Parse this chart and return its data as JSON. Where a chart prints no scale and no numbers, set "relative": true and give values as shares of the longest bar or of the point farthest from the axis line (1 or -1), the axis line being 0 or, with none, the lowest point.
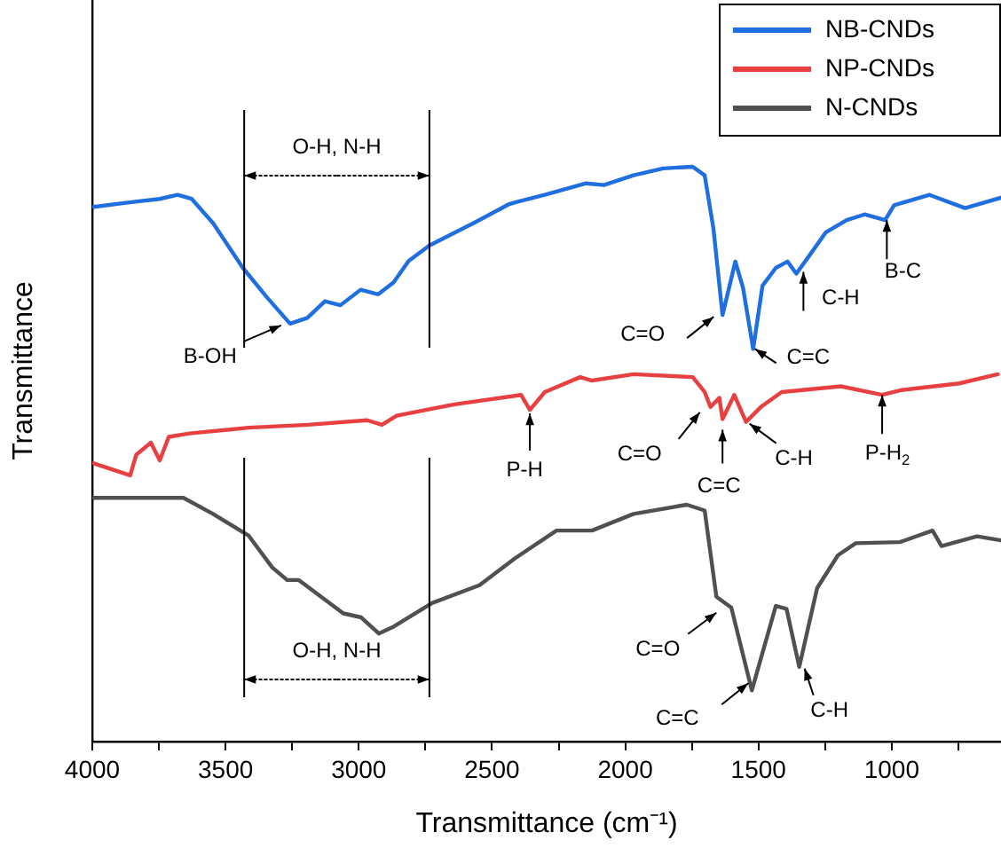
{
  "chart_data": {
    "type": "line",
    "relative": true,
    "xlabel": "Transmittance (cm⁻¹)",
    "ylabel": "Transmittance",
    "xlim": [
      4000,
      590
    ],
    "xticks": [
      4000,
      {
        "value": 3750,
        "label": null
      },
      3500,
      {
        "value": 3250,
        "label": null
      },
      3000,
      {
        "value": 2750,
        "label": null
      },
      2500,
      {
        "value": 2250,
        "label": null
      },
      2000,
      {
        "value": 1750,
        "label": null
      },
      1500,
      {
        "value": 1250,
        "label": null
      },
      1000,
      {
        "value": 750,
        "label": null
      }
    ],
    "legend": "top right",
    "grid": false,
    "marker": "none",
    "line_style": "solid",
    "series": [
      {
        "name": "NB-CNDs",
        "color": "#1f6fe0",
        "x": [
          3995,
          3860,
          3747,
          3680,
          3627,
          3547,
          3435,
          3347,
          3258,
          3193,
          3127,
          3069,
          2993,
          2927,
          2869,
          2813,
          2735,
          2569,
          2435,
          2413,
          2302,
          2147,
          2080,
          1969,
          1858,
          1747,
          1702,
          1669,
          1635,
          1587,
          1558,
          1520,
          1485,
          1435,
          1391,
          1358,
          1302,
          1247,
          1169,
          1102,
          1025,
          991,
          858,
          725,
          591
        ],
        "values": [
          0.93,
          0.938,
          0.944,
          0.951,
          0.944,
          0.902,
          0.824,
          0.774,
          0.727,
          0.737,
          0.766,
          0.759,
          0.786,
          0.778,
          0.799,
          0.836,
          0.863,
          0.902,
          0.935,
          0.938,
          0.951,
          0.971,
          0.968,
          0.985,
          0.997,
          1.0,
          0.985,
          0.892,
          0.742,
          0.835,
          0.789,
          0.683,
          0.793,
          0.824,
          0.835,
          0.814,
          0.85,
          0.886,
          0.907,
          0.917,
          0.907,
          0.933,
          0.951,
          0.928,
          0.946
        ]
      },
      {
        "name": "NP-CNDs",
        "color": "#e84040",
        "x": [
          3995,
          3858,
          3835,
          3780,
          3747,
          3713,
          3635,
          3413,
          3191,
          2969,
          2913,
          2858,
          2635,
          2391,
          2358,
          2302,
          2169,
          2125,
          1969,
          1747,
          1702,
          1680,
          1647,
          1635,
          1591,
          1547,
          1491,
          1413,
          1191,
          1036,
          969,
          747,
          602
        ],
        "values": [
          0.484,
          0.463,
          0.499,
          0.52,
          0.489,
          0.53,
          0.536,
          0.546,
          0.551,
          0.559,
          0.551,
          0.567,
          0.587,
          0.603,
          0.577,
          0.608,
          0.634,
          0.628,
          0.639,
          0.634,
          0.608,
          0.582,
          0.598,
          0.561,
          0.603,
          0.556,
          0.582,
          0.608,
          0.618,
          0.603,
          0.611,
          0.623,
          0.639
        ]
      },
      {
        "name": "N-CNDs",
        "color": "#505050",
        "x": [
          3995,
          3658,
          3547,
          3413,
          3325,
          3269,
          3225,
          3058,
          2991,
          2925,
          2869,
          2725,
          2547,
          2413,
          2258,
          2125,
          1969,
          1769,
          1702,
          1658,
          1602,
          1525,
          1435,
          1395,
          1347,
          1280,
          1202,
          1135,
          969,
          847,
          813,
          680,
          591
        ],
        "values": [
          0.424,
          0.424,
          0.396,
          0.358,
          0.303,
          0.281,
          0.281,
          0.223,
          0.216,
          0.188,
          0.2,
          0.241,
          0.272,
          0.319,
          0.367,
          0.367,
          0.396,
          0.412,
          0.402,
          0.252,
          0.233,
          0.089,
          0.236,
          0.231,
          0.13,
          0.267,
          0.324,
          0.345,
          0.347,
          0.367,
          0.34,
          0.357,
          0.35
        ]
      }
    ],
    "ref_lines": [
      {
        "axis": "x",
        "value": 3430
      },
      {
        "axis": "x",
        "value": 2735
      }
    ],
    "annotations": [
      "O-H, N-H",
      "O-H, N-H",
      {
        "text": "B-OH",
        "x": 3258,
        "y": 0.727
      },
      {
        "text": "C=O",
        "x": 1635,
        "y": 0.742
      },
      {
        "text": "C=C",
        "x": 1520,
        "y": 0.683
      },
      {
        "text": "C-H",
        "x": 1358,
        "y": 0.814
      },
      {
        "text": "B-C",
        "x": 1025,
        "y": 0.907
      },
      {
        "text": "P-H",
        "x": 2358,
        "y": 0.577
      },
      {
        "text": "C=O",
        "x": 1680,
        "y": 0.582
      },
      {
        "text": "C=C",
        "x": 1635,
        "y": 0.561
      },
      {
        "text": "C-H",
        "x": 1547,
        "y": 0.556
      },
      {
        "text": "P-H$_{2}$",
        "x": 1036,
        "y": 0.603
      },
      {
        "text": "C=O",
        "x": 1658,
        "y": 0.252
      },
      {
        "text": "C=C",
        "x": 1525,
        "y": 0.089
      },
      {
        "text": "C-H",
        "x": 1347,
        "y": 0.13
      }
    ]
  }
}
